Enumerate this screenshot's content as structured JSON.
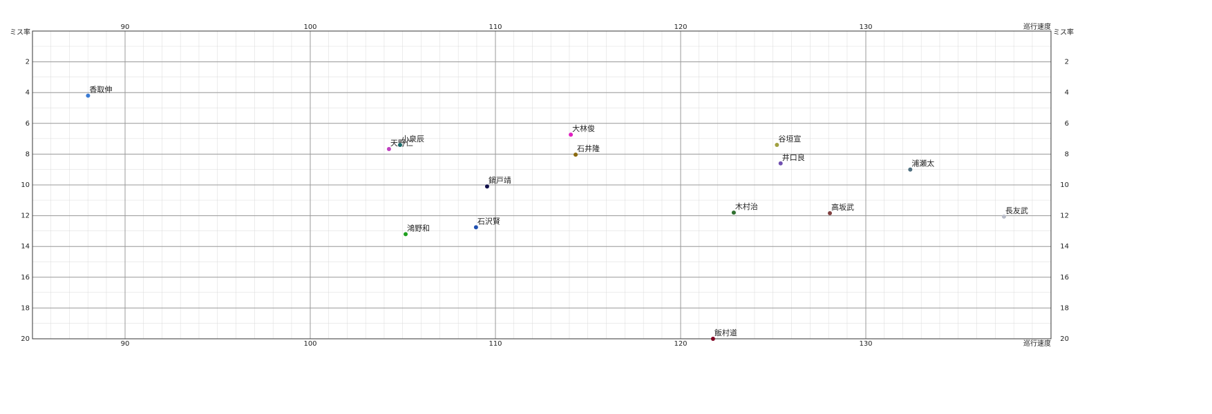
{
  "chart_data": {
    "type": "scatter",
    "x_label": "巡行速度",
    "y_label": "ミス率",
    "xlim": [
      85,
      140
    ],
    "xticks": [
      90,
      100,
      110,
      120,
      130
    ],
    "ylim": [
      0,
      20
    ],
    "yticks": [
      2,
      4,
      6,
      8,
      10,
      12,
      14,
      16,
      18,
      20
    ],
    "y_inverted": true,
    "grid": true,
    "points": [
      {
        "label": "香取伸",
        "x": 88.0,
        "y": 4.2,
        "color": "#3a7bd5"
      },
      {
        "label": "天野仁",
        "x": 104.25,
        "y": 7.67,
        "color": "#c040c0"
      },
      {
        "label": "小泉辰",
        "x": 104.85,
        "y": 7.4,
        "color": "#1a6a6a"
      },
      {
        "label": "鍋戸靖",
        "x": 109.55,
        "y": 10.1,
        "color": "#10104a"
      },
      {
        "label": "鴻野和",
        "x": 105.15,
        "y": 13.2,
        "color": "#20a020"
      },
      {
        "label": "石沢賢",
        "x": 108.95,
        "y": 12.75,
        "color": "#2050b0"
      },
      {
        "label": "大林俊",
        "x": 114.07,
        "y": 6.73,
        "color": "#e020c0"
      },
      {
        "label": "石井隆",
        "x": 114.33,
        "y": 8.03,
        "color": "#8a6a10"
      },
      {
        "label": "谷垣宣",
        "x": 125.2,
        "y": 7.4,
        "color": "#a0a040"
      },
      {
        "label": "井口良",
        "x": 125.4,
        "y": 8.6,
        "color": "#7050b0"
      },
      {
        "label": "浦瀬太",
        "x": 132.4,
        "y": 9.0,
        "color": "#507080"
      },
      {
        "label": "木村治",
        "x": 122.87,
        "y": 11.8,
        "color": "#307030"
      },
      {
        "label": "高坂武",
        "x": 128.06,
        "y": 11.84,
        "color": "#804040"
      },
      {
        "label": "長友武",
        "x": 137.46,
        "y": 12.06,
        "color": "#b8bcc8"
      },
      {
        "label": "飯村道",
        "x": 121.75,
        "y": 20,
        "color": "#800020"
      }
    ]
  }
}
